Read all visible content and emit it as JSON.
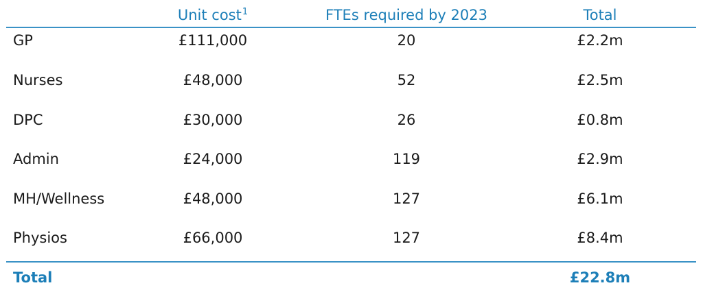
{
  "header": {
    "unit_cost_label": "Unit cost",
    "unit_cost_footnote": "1",
    "ftes_label": "FTEs required by 2023",
    "total_label": "Total"
  },
  "rows": [
    {
      "role": "GP",
      "unit_cost": "£111,000",
      "ftes": "20",
      "total": "£2.2m"
    },
    {
      "role": "Nurses",
      "unit_cost": "£48,000",
      "ftes": "52",
      "total": "£2.5m"
    },
    {
      "role": "DPC",
      "unit_cost": "£30,000",
      "ftes": "26",
      "total": "£0.8m"
    },
    {
      "role": "Admin",
      "unit_cost": "£24,000",
      "ftes": "119",
      "total": "£2.9m"
    },
    {
      "role": "MH/Wellness",
      "unit_cost": "£48,000",
      "ftes": "127",
      "total": "£6.1m"
    },
    {
      "role": "Physios",
      "unit_cost": "£66,000",
      "ftes": "127",
      "total": "£8.4m"
    }
  ],
  "total_row": {
    "label": "Total",
    "value": "£22.8m"
  },
  "colors": {
    "accent": "#1d7fb8",
    "rule": "#3a92c6",
    "text": "#1a1a1a"
  }
}
